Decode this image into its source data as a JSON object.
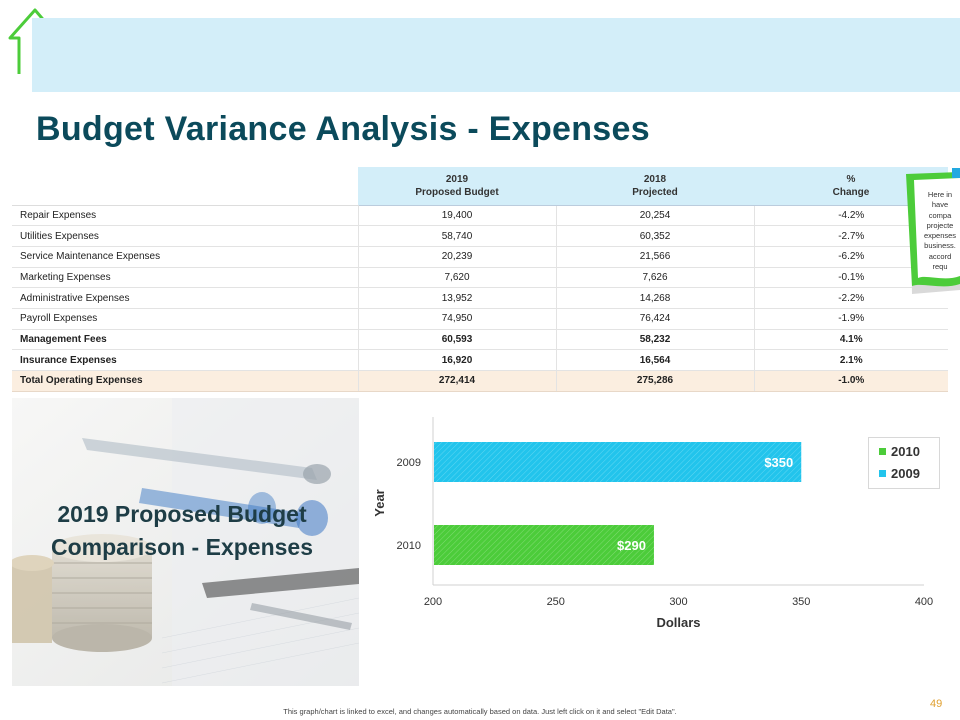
{
  "title": "Budget Variance Analysis - Expenses",
  "colors": {
    "accent_green": "#4ccc3a",
    "accent_blue": "#22c4ec",
    "title_color": "#0b4a5b",
    "band": "#d3eef9"
  },
  "icons": {
    "home": "home-outline-icon"
  },
  "table": {
    "headers": [
      [
        "",
        ""
      ],
      [
        "2019",
        "Proposed Budget"
      ],
      [
        "2018",
        "Projected"
      ],
      [
        "%",
        "Change"
      ]
    ],
    "rows": [
      {
        "label": "Repair Expenses",
        "budget": "19,400",
        "projected": "20,254",
        "change": "-4.2%",
        "bold": false
      },
      {
        "label": "Utilities Expenses",
        "budget": "58,740",
        "projected": "60,352",
        "change": "-2.7%",
        "bold": false
      },
      {
        "label": "Service Maintenance Expenses",
        "budget": "20,239",
        "projected": "21,566",
        "change": "-6.2%",
        "bold": false
      },
      {
        "label": "Marketing Expenses",
        "budget": "7,620",
        "projected": "7,626",
        "change": "-0.1%",
        "bold": false
      },
      {
        "label": "Administrative Expenses",
        "budget": "13,952",
        "projected": "14,268",
        "change": "-2.2%",
        "bold": false
      },
      {
        "label": "Payroll Expenses",
        "budget": "74,950",
        "projected": "76,424",
        "change": "-1.9%",
        "bold": false
      },
      {
        "label": "Management Fees",
        "budget": "60,593",
        "projected": "58,232",
        "change": "4.1%",
        "bold": true
      },
      {
        "label": "Insurance Expenses",
        "budget": "16,920",
        "projected": "16,564",
        "change": "2.1%",
        "bold": true
      }
    ],
    "total": {
      "label": "Total Operating Expenses",
      "budget": "272,414",
      "projected": "275,286",
      "change": "-1.0%"
    }
  },
  "callout": {
    "lines": [
      "Here in",
      "have",
      "compa",
      "projecte",
      "expenses",
      "business.",
      "accord",
      "requ"
    ]
  },
  "photo_title": [
    "2019 Proposed Budget",
    "Comparison - Expenses"
  ],
  "chart_data": {
    "type": "bar",
    "orientation": "horizontal",
    "categories": [
      "2009",
      "2010"
    ],
    "series": [
      {
        "name": "2009",
        "values": [
          350,
          null
        ],
        "color": "#22c4ec"
      },
      {
        "name": "2010",
        "values": [
          null,
          290
        ],
        "color": "#4ccc3a"
      }
    ],
    "data_labels": [
      "$350",
      "$290"
    ],
    "xlabel": "Dollars",
    "ylabel": "Year",
    "xlim": [
      200,
      400
    ],
    "xticks": [
      "200",
      "250",
      "300",
      "350",
      "400"
    ],
    "legend_entries": [
      "2010",
      "2009"
    ],
    "legend_position": "top-right",
    "grid": false
  },
  "footnote": "This graph/chart is linked to excel, and changes automatically based on data. Just left click on it and select \"Edit Data\".",
  "page_number": "49"
}
